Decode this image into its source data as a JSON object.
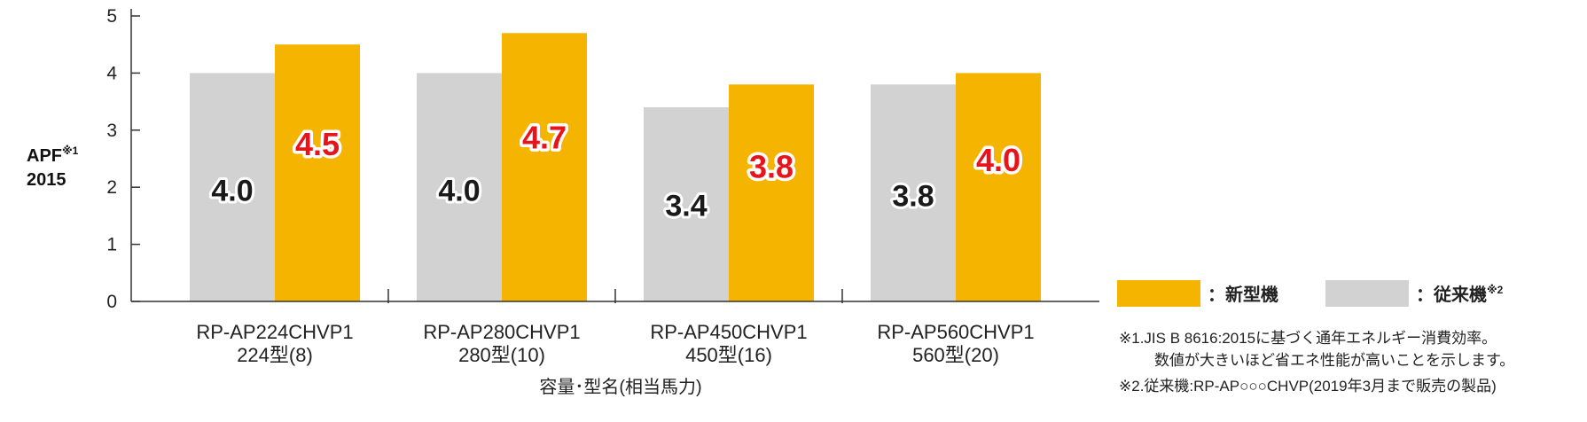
{
  "chart_data": {
    "type": "bar",
    "ylabel_line1": "APF",
    "ylabel_sup": "※1",
    "ylabel_line2": "2015",
    "xlabel": "容量･型名(相当馬力)",
    "ylim": [
      0,
      5
    ],
    "yticks": [
      "0",
      "1",
      "2",
      "3",
      "4",
      "5"
    ],
    "categories": [
      {
        "model": "RP-AP224CHVP1",
        "size": "224型(8)"
      },
      {
        "model": "RP-AP280CHVP1",
        "size": "280型(10)"
      },
      {
        "model": "RP-AP450CHVP1",
        "size": "450型(16)"
      },
      {
        "model": "RP-AP560CHVP1",
        "size": "560型(20)"
      }
    ],
    "series": [
      {
        "name": "従来機",
        "values": [
          4.0,
          4.0,
          3.4,
          3.8
        ],
        "labels": [
          "4.0",
          "4.0",
          "3.4",
          "3.8"
        ],
        "color": "#d2d2d2"
      },
      {
        "name": "新型機",
        "values": [
          4.5,
          4.7,
          3.8,
          4.0
        ],
        "labels": [
          "4.5",
          "4.7",
          "3.8",
          "4.0"
        ],
        "color": "#f5b400"
      }
    ],
    "legend": {
      "new_label": "：新型機",
      "old_label": "：従来機",
      "old_sup": "※2",
      "placement": "right"
    },
    "notes": [
      "※1.JIS B 8616:2015に基づく通年エネルギー消費効率。",
      "数値が大きいほど省エネ性能が高いことを示します。",
      "※2.従来機:RP-AP○○○CHVP(2019年3月まで販売の製品)"
    ],
    "grid": false
  }
}
